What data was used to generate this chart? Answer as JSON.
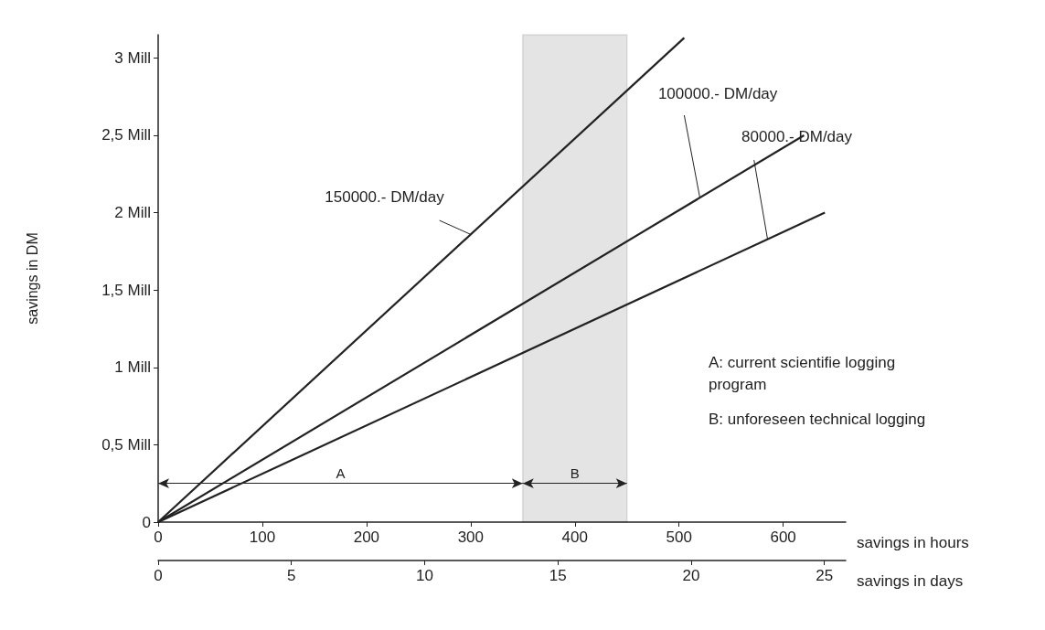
{
  "chart_data": {
    "type": "line",
    "xlabel": "savings in hours",
    "ylabel": "savings in DM",
    "x2label": "savings in days",
    "xlim": [
      0,
      660
    ],
    "xticks": [
      0,
      100,
      200,
      300,
      400,
      500,
      600
    ],
    "x2lim": [
      0,
      25.8
    ],
    "x2ticks": [
      0,
      5,
      10,
      15,
      20,
      25
    ],
    "ylim": [
      0,
      3.15
    ],
    "yticks": [
      0,
      {
        "value": 0.5,
        "label": "0,5 Mill"
      },
      {
        "value": 1,
        "label": "1 Mill"
      },
      {
        "value": 1.5,
        "label": "1,5 Mill"
      },
      {
        "value": 2,
        "label": "2 Mill"
      },
      {
        "value": 2.5,
        "label": "2,5 Mill"
      },
      {
        "value": 3,
        "label": "3 Mill"
      }
    ],
    "series": [
      {
        "name": "150000.- DM/day",
        "color": "#222222",
        "x": [
          0,
          505
        ],
        "values": [
          0,
          3.13
        ]
      },
      {
        "name": "100000.- DM/day",
        "color": "#222222",
        "x": [
          0,
          620
        ],
        "values": [
          0,
          2.5
        ]
      },
      {
        "name": "80000.- DM/day",
        "color": "#222222",
        "x": [
          0,
          640
        ],
        "values": [
          0,
          2.0
        ]
      }
    ],
    "bands": [
      {
        "axis": "x",
        "from": 350,
        "to": 450,
        "label": "B",
        "color": "#222222"
      }
    ],
    "annotations": [
      "A",
      "A: current scientifie logging program",
      "B: unforeseen technical logging"
    ],
    "grid": false,
    "legend": false,
    "marker": "none",
    "line_style": "solid"
  }
}
